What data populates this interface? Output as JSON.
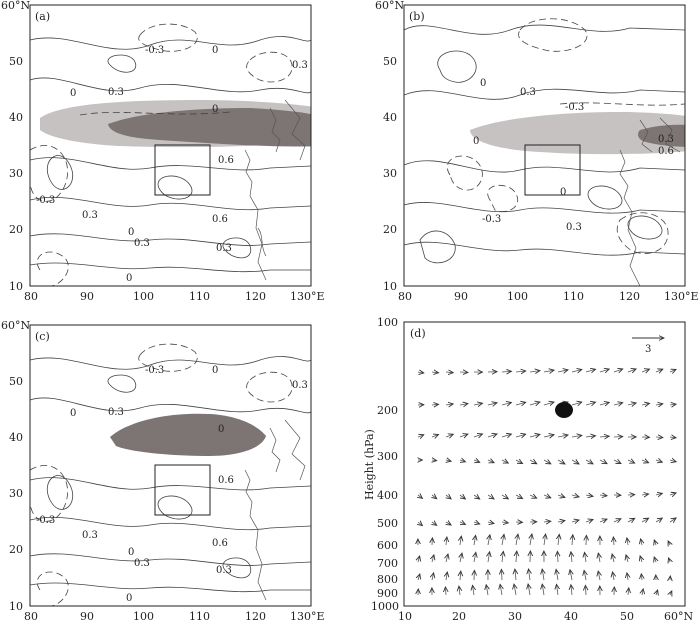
{
  "panels": [
    {
      "id": "a",
      "label": "(a)",
      "contour_labels": [
        "-0.3",
        "0",
        "0.3",
        "0",
        "0.6",
        "-0.3",
        "0.3",
        "0",
        "0.3",
        "0.6",
        "0.3",
        "0"
      ]
    },
    {
      "id": "b",
      "label": "(b)",
      "contour_labels": [
        "0",
        "0.3",
        "-0.3",
        "0",
        "0.3",
        "0.6",
        "0",
        "-0.3",
        "0.3"
      ]
    },
    {
      "id": "c",
      "label": "(c)",
      "contour_labels": [
        "-0.3",
        "0",
        "0.3",
        "0",
        "0.6",
        "-0.3",
        "0.3",
        "0.6",
        "0.3",
        "0"
      ]
    },
    {
      "id": "d",
      "label": "(d)"
    }
  ],
  "map_axes": {
    "x_ticks": [
      "80",
      "90",
      "100",
      "110",
      "120",
      "130°E"
    ],
    "y_ticks": [
      "10",
      "20",
      "30",
      "40",
      "50",
      "60°N"
    ],
    "lon_range": [
      80,
      130
    ],
    "lat_range": [
      10,
      60
    ],
    "box_lon": [
      102,
      112
    ],
    "box_lat": [
      26,
      35
    ]
  },
  "section_axes": {
    "ylabel": "Height (hPa)",
    "y_ticks": [
      "100",
      "200",
      "300",
      "400",
      "500",
      "600",
      "700",
      "800",
      "900",
      "1000"
    ],
    "x_ticks": [
      "10",
      "20",
      "30",
      "40",
      "50",
      "60°N"
    ],
    "reference_vector": "3",
    "marker": {
      "lat": 38,
      "pressure": 200
    }
  }
}
